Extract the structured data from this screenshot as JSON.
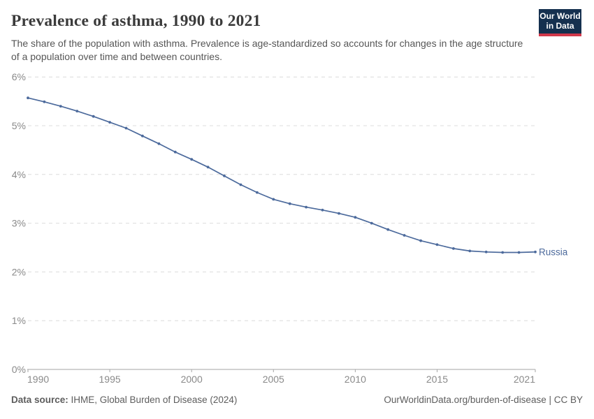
{
  "header": {
    "title": "Prevalence of asthma, 1990 to 2021",
    "subtitle": "The share of the population with asthma. Prevalence is age-standardized so accounts for changes in the age structure of a population over time and between countries.",
    "logo_line1": "Our World",
    "logo_line2": "in Data"
  },
  "chart_data": {
    "type": "line",
    "title": "Prevalence of asthma, 1990 to 2021",
    "xlabel": "",
    "ylabel": "",
    "ylim": [
      0,
      6
    ],
    "ytick_labels": [
      "0%",
      "1%",
      "2%",
      "3%",
      "4%",
      "5%",
      "6%"
    ],
    "xticks": [
      1990,
      1995,
      2000,
      2005,
      2010,
      2015,
      2021
    ],
    "grid": "horizontal-dashed",
    "legend_position": "end-of-line",
    "x": [
      1990,
      1991,
      1992,
      1993,
      1994,
      1995,
      1996,
      1997,
      1998,
      1999,
      2000,
      2001,
      2002,
      2003,
      2004,
      2005,
      2006,
      2007,
      2008,
      2009,
      2010,
      2011,
      2012,
      2013,
      2014,
      2015,
      2016,
      2017,
      2018,
      2019,
      2020,
      2021
    ],
    "series": [
      {
        "name": "Russia",
        "color": "#4C6A9C",
        "values": [
          5.57,
          5.49,
          5.4,
          5.3,
          5.19,
          5.07,
          4.95,
          4.79,
          4.63,
          4.46,
          4.31,
          4.15,
          3.97,
          3.79,
          3.63,
          3.49,
          3.4,
          3.33,
          3.27,
          3.2,
          3.12,
          3.0,
          2.87,
          2.75,
          2.64,
          2.56,
          2.48,
          2.43,
          2.41,
          2.4,
          2.4,
          2.41
        ]
      }
    ]
  },
  "colors": {
    "line": "#4C6A9C",
    "grid": "#dcdcdc",
    "axis": "#a6a6a6",
    "tick_text": "#8a8a8a",
    "logo_navy": "#15304f",
    "logo_red": "#d1394b"
  },
  "footer": {
    "source_label": "Data source:",
    "source_value": " IHME, Global Burden of Disease (2024)",
    "attribution_link": "OurWorldinData.org/burden-of-disease",
    "attribution_suffix": " | CC BY"
  }
}
